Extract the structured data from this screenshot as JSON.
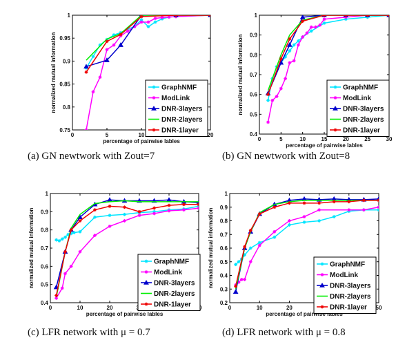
{
  "chart_data": [
    {
      "type": "line",
      "caption": "(a)  GN newtwork with Zout=7",
      "xlabel": "percentage of pairwise lables",
      "ylabel": "normalized mutual information",
      "xlim": [
        0,
        20
      ],
      "ylim": [
        0.75,
        1
      ],
      "xticks": [
        0,
        5,
        10,
        15,
        20
      ],
      "yticks": [
        0.75,
        0.8,
        0.85,
        0.9,
        0.95,
        1
      ],
      "ytick_labels": [
        "0.75",
        "0.8",
        "0.85",
        "0.9",
        "0.95",
        "1"
      ],
      "legend": "bottom-right",
      "series": [
        {
          "name": "GraphNMF",
          "color": "#00e5ff",
          "marker": "star",
          "x": [
            2,
            3,
            4,
            5,
            6,
            7,
            8,
            9,
            10,
            11,
            12,
            13,
            14,
            15,
            20
          ],
          "y": [
            0.885,
            0.91,
            0.935,
            0.947,
            0.957,
            0.962,
            0.97,
            0.975,
            0.99,
            0.975,
            0.985,
            0.992,
            0.996,
            0.997,
            1.0
          ]
        },
        {
          "name": "ModLink",
          "color": "#ff00ff",
          "marker": "star",
          "x": [
            2,
            3,
            4,
            5,
            6,
            7,
            8,
            9,
            10,
            11,
            12,
            13,
            14,
            15,
            20
          ],
          "y": [
            0.75,
            0.833,
            0.865,
            0.925,
            0.935,
            0.955,
            0.965,
            0.975,
            0.985,
            0.985,
            0.993,
            0.995,
            0.996,
            0.997,
            1.0
          ]
        },
        {
          "name": "DNR-3layers",
          "color": "#0000cc",
          "marker": "triangle",
          "x": [
            2,
            5,
            7,
            10,
            15,
            20
          ],
          "y": [
            0.888,
            0.902,
            0.935,
            1.0,
            1.0,
            1.0
          ]
        },
        {
          "name": "DNR-2layers",
          "color": "#00ee00",
          "marker": "none",
          "x": [
            2,
            5,
            7,
            10,
            15,
            20
          ],
          "y": [
            0.902,
            0.948,
            0.96,
            1.0,
            1.0,
            1.0
          ]
        },
        {
          "name": "DNR-1layer",
          "color": "#ee0000",
          "marker": "star",
          "x": [
            2,
            5,
            7,
            10,
            15,
            20
          ],
          "y": [
            0.876,
            0.943,
            0.958,
            0.997,
            1.0,
            1.0
          ]
        }
      ]
    },
    {
      "type": "line",
      "caption": "(b)  GN newtwork with Zout=8",
      "xlabel": "percentage of pairwise lables",
      "ylabel": "normalized mutual information",
      "xlim": [
        0,
        30
      ],
      "ylim": [
        0.4,
        1
      ],
      "xticks": [
        0,
        5,
        10,
        15,
        20,
        25,
        30
      ],
      "yticks": [
        0.4,
        0.5,
        0.6,
        0.7,
        0.8,
        0.9,
        1
      ],
      "ytick_labels": [
        "0.4",
        "0.5",
        "0.6",
        "0.7",
        "0.8",
        "0.9",
        "1"
      ],
      "legend": "bottom-right",
      "series": [
        {
          "name": "GraphNMF",
          "color": "#00e5ff",
          "marker": "star",
          "x": [
            2,
            3,
            4,
            5,
            6,
            7,
            8,
            9,
            10,
            12,
            15,
            20,
            25,
            30
          ],
          "y": [
            0.57,
            0.68,
            0.74,
            0.76,
            0.79,
            0.82,
            0.85,
            0.87,
            0.89,
            0.92,
            0.96,
            0.98,
            0.99,
            1.0
          ]
        },
        {
          "name": "ModLink",
          "color": "#ff00ff",
          "marker": "star",
          "x": [
            2,
            3,
            4,
            5,
            6,
            7,
            8,
            9,
            10,
            11,
            12,
            13,
            14,
            15,
            20,
            25,
            30
          ],
          "y": [
            0.46,
            0.57,
            0.59,
            0.63,
            0.68,
            0.76,
            0.77,
            0.85,
            0.89,
            0.91,
            0.94,
            0.94,
            0.95,
            0.98,
            0.99,
            1.0,
            1.0
          ]
        },
        {
          "name": "DNR-3layers",
          "color": "#0000cc",
          "marker": "triangle",
          "x": [
            2,
            5,
            7,
            10,
            15,
            20,
            25,
            30
          ],
          "y": [
            0.605,
            0.76,
            0.85,
            0.99,
            1.0,
            1.0,
            1.0,
            1.0
          ]
        },
        {
          "name": "DNR-2layers",
          "color": "#00ee00",
          "marker": "none",
          "x": [
            2,
            5,
            7,
            10,
            15,
            20,
            25,
            30
          ],
          "y": [
            0.62,
            0.8,
            0.9,
            0.975,
            1.0,
            1.0,
            1.0,
            1.0
          ]
        },
        {
          "name": "DNR-1layer",
          "color": "#ee0000",
          "marker": "star",
          "x": [
            2,
            5,
            7,
            10,
            15,
            20,
            25,
            30
          ],
          "y": [
            0.6,
            0.78,
            0.88,
            0.97,
            1.0,
            1.0,
            1.0,
            1.0
          ]
        }
      ]
    },
    {
      "type": "line",
      "caption": "(c)  LFR network with μ = 0.7",
      "xlabel": "percentage of pairwise lables",
      "ylabel": "normalized mutual information",
      "xlim": [
        0,
        50
      ],
      "ylim": [
        0.4,
        1
      ],
      "xticks": [
        0,
        10,
        20,
        30,
        40,
        50
      ],
      "yticks": [
        0.4,
        0.5,
        0.6,
        0.7,
        0.8,
        0.9,
        1
      ],
      "ytick_labels": [
        "0.4",
        "0.5",
        "0.6",
        "0.7",
        "0.8",
        "0.9",
        "1"
      ],
      "legend": "bottom-left",
      "series": [
        {
          "name": "GraphNMF",
          "color": "#00e5ff",
          "marker": "star",
          "x": [
            2,
            3,
            4,
            5,
            6,
            7,
            8,
            10,
            15,
            20,
            25,
            30,
            35,
            40,
            45,
            50
          ],
          "y": [
            0.745,
            0.74,
            0.75,
            0.76,
            0.775,
            0.78,
            0.785,
            0.79,
            0.87,
            0.88,
            0.885,
            0.895,
            0.9,
            0.91,
            0.915,
            0.93
          ]
        },
        {
          "name": "ModLink",
          "color": "#ff00ff",
          "marker": "star",
          "x": [
            2,
            4,
            5,
            7,
            10,
            15,
            20,
            25,
            30,
            35,
            40,
            45,
            50
          ],
          "y": [
            0.425,
            0.48,
            0.56,
            0.6,
            0.68,
            0.77,
            0.82,
            0.85,
            0.88,
            0.89,
            0.905,
            0.91,
            0.92
          ]
        },
        {
          "name": "DNR-3layers",
          "color": "#0000cc",
          "marker": "triangle",
          "x": [
            2,
            5,
            7,
            10,
            15,
            20,
            25,
            30,
            35,
            40,
            45,
            50
          ],
          "y": [
            0.485,
            0.68,
            0.8,
            0.87,
            0.94,
            0.965,
            0.96,
            0.96,
            0.96,
            0.965,
            0.955,
            0.95
          ]
        },
        {
          "name": "DNR-2layers",
          "color": "#00ee00",
          "marker": "none",
          "x": [
            2,
            5,
            7,
            10,
            15,
            20,
            25,
            30,
            35,
            40,
            45,
            50
          ],
          "y": [
            0.43,
            0.68,
            0.81,
            0.885,
            0.945,
            0.955,
            0.96,
            0.955,
            0.955,
            0.955,
            0.955,
            0.955
          ]
        },
        {
          "name": "DNR-1layer",
          "color": "#ee0000",
          "marker": "star",
          "x": [
            2,
            5,
            7,
            10,
            15,
            20,
            25,
            30,
            35,
            40,
            45,
            50
          ],
          "y": [
            0.44,
            0.68,
            0.8,
            0.85,
            0.91,
            0.93,
            0.925,
            0.9,
            0.92,
            0.935,
            0.94,
            0.94
          ]
        }
      ]
    },
    {
      "type": "line",
      "caption": "(d)  LFR network with μ = 0.8",
      "xlabel": "percentage of pairwise lables",
      "ylabel": "normalized mutual information",
      "xlim": [
        0,
        50
      ],
      "ylim": [
        0.2,
        1
      ],
      "xticks": [
        0,
        10,
        20,
        30,
        40,
        50
      ],
      "yticks": [
        0.2,
        0.3,
        0.4,
        0.5,
        0.6,
        0.7,
        0.8,
        0.9,
        1
      ],
      "ytick_labels": [
        "0.2",
        "0.3",
        "0.4",
        "0.5",
        "0.6",
        "0.7",
        "0.8",
        "0.9",
        "1"
      ],
      "legend": "bottom-right",
      "series": [
        {
          "name": "GraphNMF",
          "color": "#00e5ff",
          "marker": "star",
          "x": [
            2,
            3,
            4,
            5,
            7,
            10,
            15,
            20,
            25,
            30,
            35,
            40,
            45,
            50
          ],
          "y": [
            0.48,
            0.5,
            0.52,
            0.55,
            0.6,
            0.64,
            0.68,
            0.77,
            0.79,
            0.8,
            0.83,
            0.87,
            0.88,
            0.88
          ]
        },
        {
          "name": "ModLink",
          "color": "#ff00ff",
          "marker": "star",
          "x": [
            2,
            3,
            4,
            5,
            7,
            10,
            15,
            20,
            25,
            30,
            40,
            45,
            50
          ],
          "y": [
            0.33,
            0.35,
            0.37,
            0.37,
            0.5,
            0.62,
            0.72,
            0.8,
            0.83,
            0.88,
            0.88,
            0.88,
            0.9
          ]
        },
        {
          "name": "DNR-3layers",
          "color": "#0000cc",
          "marker": "triangle",
          "x": [
            2,
            5,
            7,
            10,
            15,
            20,
            25,
            30,
            35,
            40,
            45,
            50
          ],
          "y": [
            0.28,
            0.6,
            0.72,
            0.85,
            0.92,
            0.95,
            0.96,
            0.955,
            0.96,
            0.955,
            0.955,
            0.96
          ]
        },
        {
          "name": "DNR-2layers",
          "color": "#00ee00",
          "marker": "none",
          "x": [
            2,
            5,
            7,
            10,
            15,
            20,
            25,
            30,
            35,
            40,
            45,
            50
          ],
          "y": [
            0.3,
            0.6,
            0.72,
            0.86,
            0.92,
            0.94,
            0.95,
            0.95,
            0.95,
            0.95,
            0.95,
            0.95
          ]
        },
        {
          "name": "DNR-1layer",
          "color": "#ee0000",
          "marker": "star",
          "x": [
            2,
            5,
            7,
            10,
            15,
            20,
            25,
            30,
            35,
            40,
            45,
            50
          ],
          "y": [
            0.32,
            0.61,
            0.73,
            0.85,
            0.9,
            0.93,
            0.93,
            0.93,
            0.94,
            0.94,
            0.95,
            0.95
          ]
        }
      ]
    }
  ]
}
